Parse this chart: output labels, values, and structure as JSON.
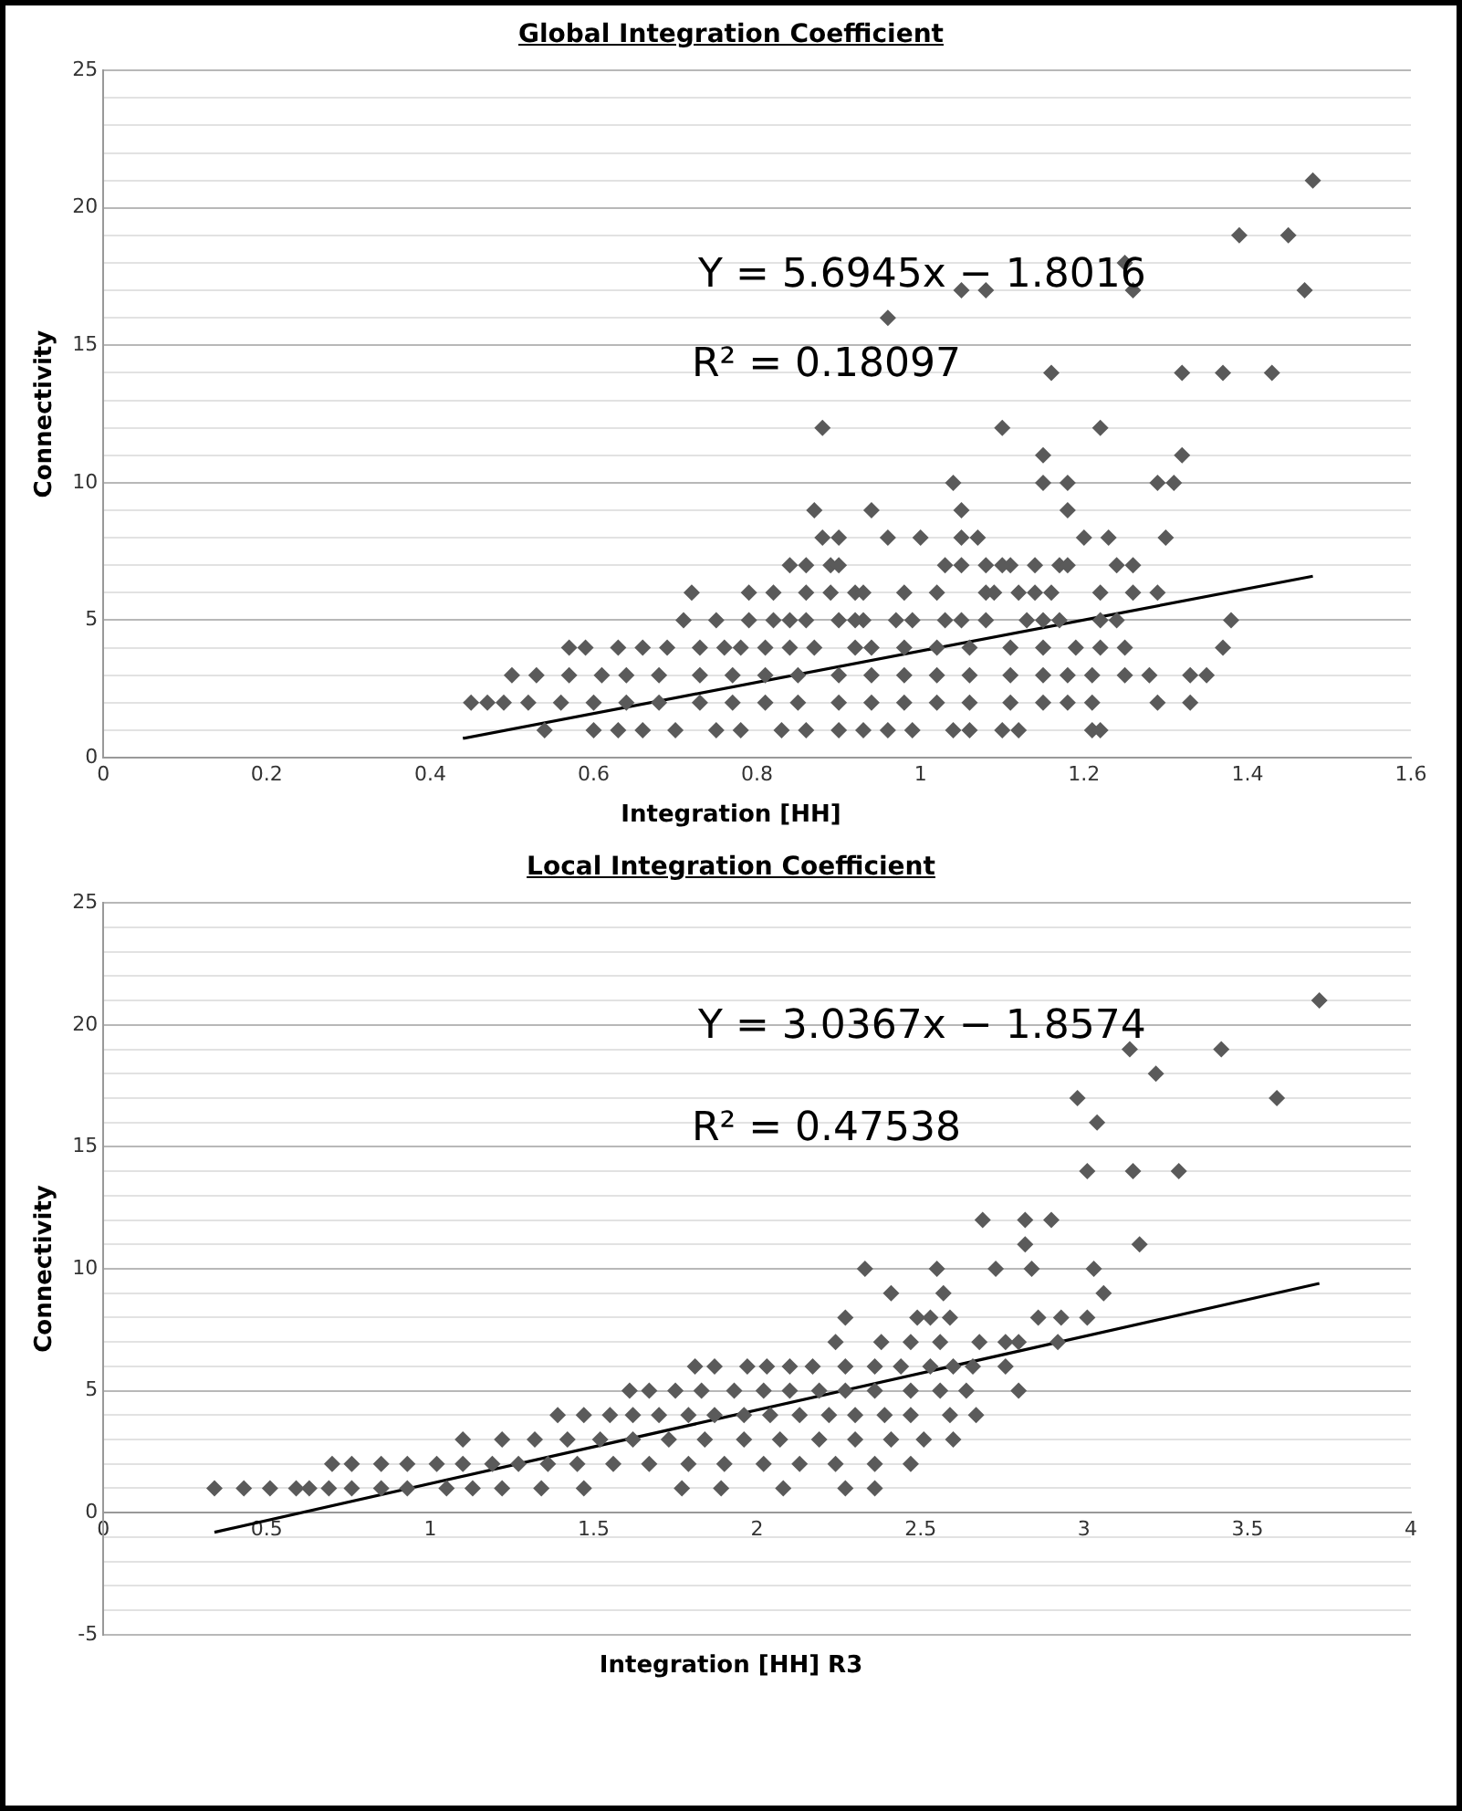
{
  "chart_data": [
    {
      "type": "scatter",
      "title": "Global Integration Coefficient",
      "xlabel": "Integration [HH]",
      "ylabel": "Connectivity",
      "annotations": [
        "Y = 5.6945x − 1.8016",
        "R² = 0.18097"
      ],
      "xlim": [
        0,
        1.6
      ],
      "xticks": [
        0,
        0.2,
        0.4,
        0.6,
        0.8,
        1,
        1.2,
        1.4,
        1.6
      ],
      "ylim": [
        0,
        25
      ],
      "yticks": [
        0,
        {
          "value": 1,
          "label": null
        },
        {
          "value": 2,
          "label": null
        },
        {
          "value": 3,
          "label": null
        },
        {
          "value": 4,
          "label": null
        },
        5,
        {
          "value": 6,
          "label": null
        },
        {
          "value": 7,
          "label": null
        },
        {
          "value": 8,
          "label": null
        },
        {
          "value": 9,
          "label": null
        },
        10,
        {
          "value": 11,
          "label": null
        },
        {
          "value": 12,
          "label": null
        },
        {
          "value": 13,
          "label": null
        },
        {
          "value": 14,
          "label": null
        },
        15,
        {
          "value": 16,
          "label": null
        },
        {
          "value": 17,
          "label": null
        },
        {
          "value": 18,
          "label": null
        },
        {
          "value": 19,
          "label": null
        },
        20,
        {
          "value": 21,
          "label": null
        },
        {
          "value": 22,
          "label": null
        },
        {
          "value": 23,
          "label": null
        },
        {
          "value": 24,
          "label": null
        },
        25
      ],
      "grid": "y",
      "legend": false,
      "marker": "diamond",
      "series": [
        {
          "type": "scatter",
          "color": "#5a5a5a",
          "x": [
            0.54,
            0.6,
            0.63,
            0.66,
            0.7,
            0.75,
            0.78,
            0.83,
            0.86,
            0.9,
            0.93,
            0.96,
            0.99,
            1.04,
            1.06,
            1.1,
            1.12,
            1.21,
            1.22,
            0.45,
            0.47,
            0.49,
            0.52,
            0.56,
            0.6,
            0.64,
            0.68,
            0.73,
            0.77,
            0.81,
            0.85,
            0.9,
            0.94,
            0.98,
            1.02,
            1.06,
            1.11,
            1.15,
            1.18,
            1.21,
            1.29,
            1.33,
            0.5,
            0.53,
            0.57,
            0.61,
            0.64,
            0.68,
            0.73,
            0.77,
            0.81,
            0.85,
            0.9,
            0.94,
            0.98,
            1.02,
            1.06,
            1.11,
            1.15,
            1.18,
            1.21,
            1.25,
            1.28,
            1.33,
            1.35,
            0.57,
            0.59,
            0.63,
            0.66,
            0.69,
            0.73,
            0.76,
            0.78,
            0.81,
            0.84,
            0.87,
            0.92,
            0.94,
            0.98,
            1.02,
            1.06,
            1.11,
            1.15,
            1.19,
            1.22,
            1.25,
            1.37,
            0.71,
            0.75,
            0.79,
            0.82,
            0.84,
            0.86,
            0.9,
            0.92,
            0.93,
            0.97,
            0.99,
            1.03,
            1.05,
            1.08,
            1.13,
            1.15,
            1.17,
            1.22,
            1.24,
            1.38,
            0.72,
            0.79,
            0.82,
            0.86,
            0.89,
            0.92,
            0.93,
            0.98,
            1.02,
            1.08,
            1.09,
            1.12,
            1.14,
            1.16,
            1.22,
            1.26,
            1.29,
            0.84,
            0.86,
            0.89,
            0.9,
            1.03,
            1.05,
            1.08,
            1.1,
            1.11,
            1.14,
            1.17,
            1.18,
            1.24,
            1.26,
            0.88,
            0.9,
            0.96,
            1.0,
            1.05,
            1.07,
            1.2,
            1.23,
            1.3,
            0.87,
            0.94,
            1.05,
            1.18,
            1.04,
            1.15,
            1.18,
            1.29,
            1.31,
            1.15,
            1.32,
            0.88,
            1.1,
            1.22,
            1.16,
            1.32,
            1.37,
            1.43,
            0.96,
            1.05,
            1.08,
            1.26,
            1.47,
            1.25,
            1.39,
            1.45,
            1.48
          ],
          "values": [
            1,
            1,
            1,
            1,
            1,
            1,
            1,
            1,
            1,
            1,
            1,
            1,
            1,
            1,
            1,
            1,
            1,
            1,
            1,
            2,
            2,
            2,
            2,
            2,
            2,
            2,
            2,
            2,
            2,
            2,
            2,
            2,
            2,
            2,
            2,
            2,
            2,
            2,
            2,
            2,
            2,
            2,
            3,
            3,
            3,
            3,
            3,
            3,
            3,
            3,
            3,
            3,
            3,
            3,
            3,
            3,
            3,
            3,
            3,
            3,
            3,
            3,
            3,
            3,
            3,
            4,
            4,
            4,
            4,
            4,
            4,
            4,
            4,
            4,
            4,
            4,
            4,
            4,
            4,
            4,
            4,
            4,
            4,
            4,
            4,
            4,
            4,
            5,
            5,
            5,
            5,
            5,
            5,
            5,
            5,
            5,
            5,
            5,
            5,
            5,
            5,
            5,
            5,
            5,
            5,
            5,
            5,
            6,
            6,
            6,
            6,
            6,
            6,
            6,
            6,
            6,
            6,
            6,
            6,
            6,
            6,
            6,
            6,
            6,
            7,
            7,
            7,
            7,
            7,
            7,
            7,
            7,
            7,
            7,
            7,
            7,
            7,
            7,
            8,
            8,
            8,
            8,
            8,
            8,
            8,
            8,
            8,
            9,
            9,
            9,
            9,
            10,
            10,
            10,
            10,
            10,
            11,
            11,
            12,
            12,
            12,
            14,
            14,
            14,
            14,
            16,
            17,
            17,
            17,
            17,
            18,
            19,
            19,
            21
          ]
        },
        {
          "type": "line",
          "color": "#000000",
          "marker": "none",
          "line_style": "solid",
          "x": [
            0.44,
            1.48
          ],
          "values": [
            0.7,
            6.6
          ]
        }
      ]
    },
    {
      "type": "scatter",
      "title": "Local Integration Coefficient",
      "xlabel": "Integration [HH] R3",
      "ylabel": "Connectivity",
      "annotations": [
        "Y = 3.0367x − 1.8574",
        "R² = 0.47538"
      ],
      "xlim": [
        0,
        4
      ],
      "xticks": [
        0,
        0.5,
        1,
        1.5,
        2,
        2.5,
        3,
        3.5,
        4
      ],
      "ylim": [
        -5,
        25
      ],
      "yticks": [
        -5,
        {
          "value": -4,
          "label": null
        },
        {
          "value": -3,
          "label": null
        },
        {
          "value": -2,
          "label": null
        },
        {
          "value": -1,
          "label": null
        },
        0,
        {
          "value": 1,
          "label": null
        },
        {
          "value": 2,
          "label": null
        },
        {
          "value": 3,
          "label": null
        },
        {
          "value": 4,
          "label": null
        },
        5,
        {
          "value": 6,
          "label": null
        },
        {
          "value": 7,
          "label": null
        },
        {
          "value": 8,
          "label": null
        },
        {
          "value": 9,
          "label": null
        },
        10,
        {
          "value": 11,
          "label": null
        },
        {
          "value": 12,
          "label": null
        },
        {
          "value": 13,
          "label": null
        },
        {
          "value": 14,
          "label": null
        },
        15,
        {
          "value": 16,
          "label": null
        },
        {
          "value": 17,
          "label": null
        },
        {
          "value": 18,
          "label": null
        },
        {
          "value": 19,
          "label": null
        },
        20,
        {
          "value": 21,
          "label": null
        },
        {
          "value": 22,
          "label": null
        },
        {
          "value": 23,
          "label": null
        },
        {
          "value": 24,
          "label": null
        },
        25
      ],
      "grid": "y",
      "legend": false,
      "marker": "diamond",
      "series": [
        {
          "type": "scatter",
          "color": "#5a5a5a",
          "x": [
            0.34,
            0.43,
            0.51,
            0.59,
            0.63,
            0.69,
            0.76,
            0.85,
            0.93,
            1.05,
            1.13,
            1.22,
            1.34,
            1.47,
            1.77,
            1.89,
            2.08,
            2.27,
            2.36,
            0.7,
            0.76,
            0.85,
            0.93,
            1.02,
            1.1,
            1.19,
            1.27,
            1.36,
            1.45,
            1.56,
            1.67,
            1.79,
            1.9,
            2.02,
            2.13,
            2.24,
            2.36,
            2.47,
            1.1,
            1.22,
            1.32,
            1.42,
            1.52,
            1.62,
            1.73,
            1.84,
            1.96,
            2.07,
            2.19,
            2.3,
            2.41,
            2.51,
            2.6,
            1.39,
            1.47,
            1.55,
            1.62,
            1.7,
            1.79,
            1.87,
            1.96,
            2.04,
            2.13,
            2.22,
            2.3,
            2.39,
            2.47,
            2.59,
            2.67,
            1.61,
            1.67,
            1.75,
            1.83,
            1.93,
            2.02,
            2.1,
            2.19,
            2.27,
            2.36,
            2.47,
            2.56,
            2.64,
            2.8,
            1.81,
            1.87,
            1.97,
            2.03,
            2.1,
            2.17,
            2.27,
            2.36,
            2.44,
            2.53,
            2.6,
            2.66,
            2.76,
            2.24,
            2.38,
            2.47,
            2.56,
            2.68,
            2.76,
            2.8,
            2.92,
            2.27,
            2.49,
            2.53,
            2.59,
            2.86,
            2.93,
            3.01,
            2.41,
            2.57,
            3.06,
            2.33,
            2.55,
            2.73,
            2.84,
            3.03,
            2.82,
            3.17,
            2.69,
            2.82,
            2.9,
            3.01,
            3.15,
            3.29,
            3.04,
            2.98,
            3.59,
            3.22,
            3.14,
            3.42,
            3.72
          ],
          "values": [
            1,
            1,
            1,
            1,
            1,
            1,
            1,
            1,
            1,
            1,
            1,
            1,
            1,
            1,
            1,
            1,
            1,
            1,
            1,
            2,
            2,
            2,
            2,
            2,
            2,
            2,
            2,
            2,
            2,
            2,
            2,
            2,
            2,
            2,
            2,
            2,
            2,
            2,
            3,
            3,
            3,
            3,
            3,
            3,
            3,
            3,
            3,
            3,
            3,
            3,
            3,
            3,
            3,
            4,
            4,
            4,
            4,
            4,
            4,
            4,
            4,
            4,
            4,
            4,
            4,
            4,
            4,
            4,
            4,
            5,
            5,
            5,
            5,
            5,
            5,
            5,
            5,
            5,
            5,
            5,
            5,
            5,
            5,
            6,
            6,
            6,
            6,
            6,
            6,
            6,
            6,
            6,
            6,
            6,
            6,
            6,
            7,
            7,
            7,
            7,
            7,
            7,
            7,
            7,
            8,
            8,
            8,
            8,
            8,
            8,
            8,
            9,
            9,
            9,
            10,
            10,
            10,
            10,
            10,
            11,
            11,
            12,
            12,
            12,
            14,
            14,
            14,
            16,
            17,
            17,
            18,
            19,
            19,
            21
          ]
        },
        {
          "type": "line",
          "color": "#000000",
          "marker": "none",
          "line_style": "solid",
          "x": [
            0.34,
            3.72
          ],
          "values": [
            -0.8,
            9.4
          ]
        }
      ]
    }
  ]
}
